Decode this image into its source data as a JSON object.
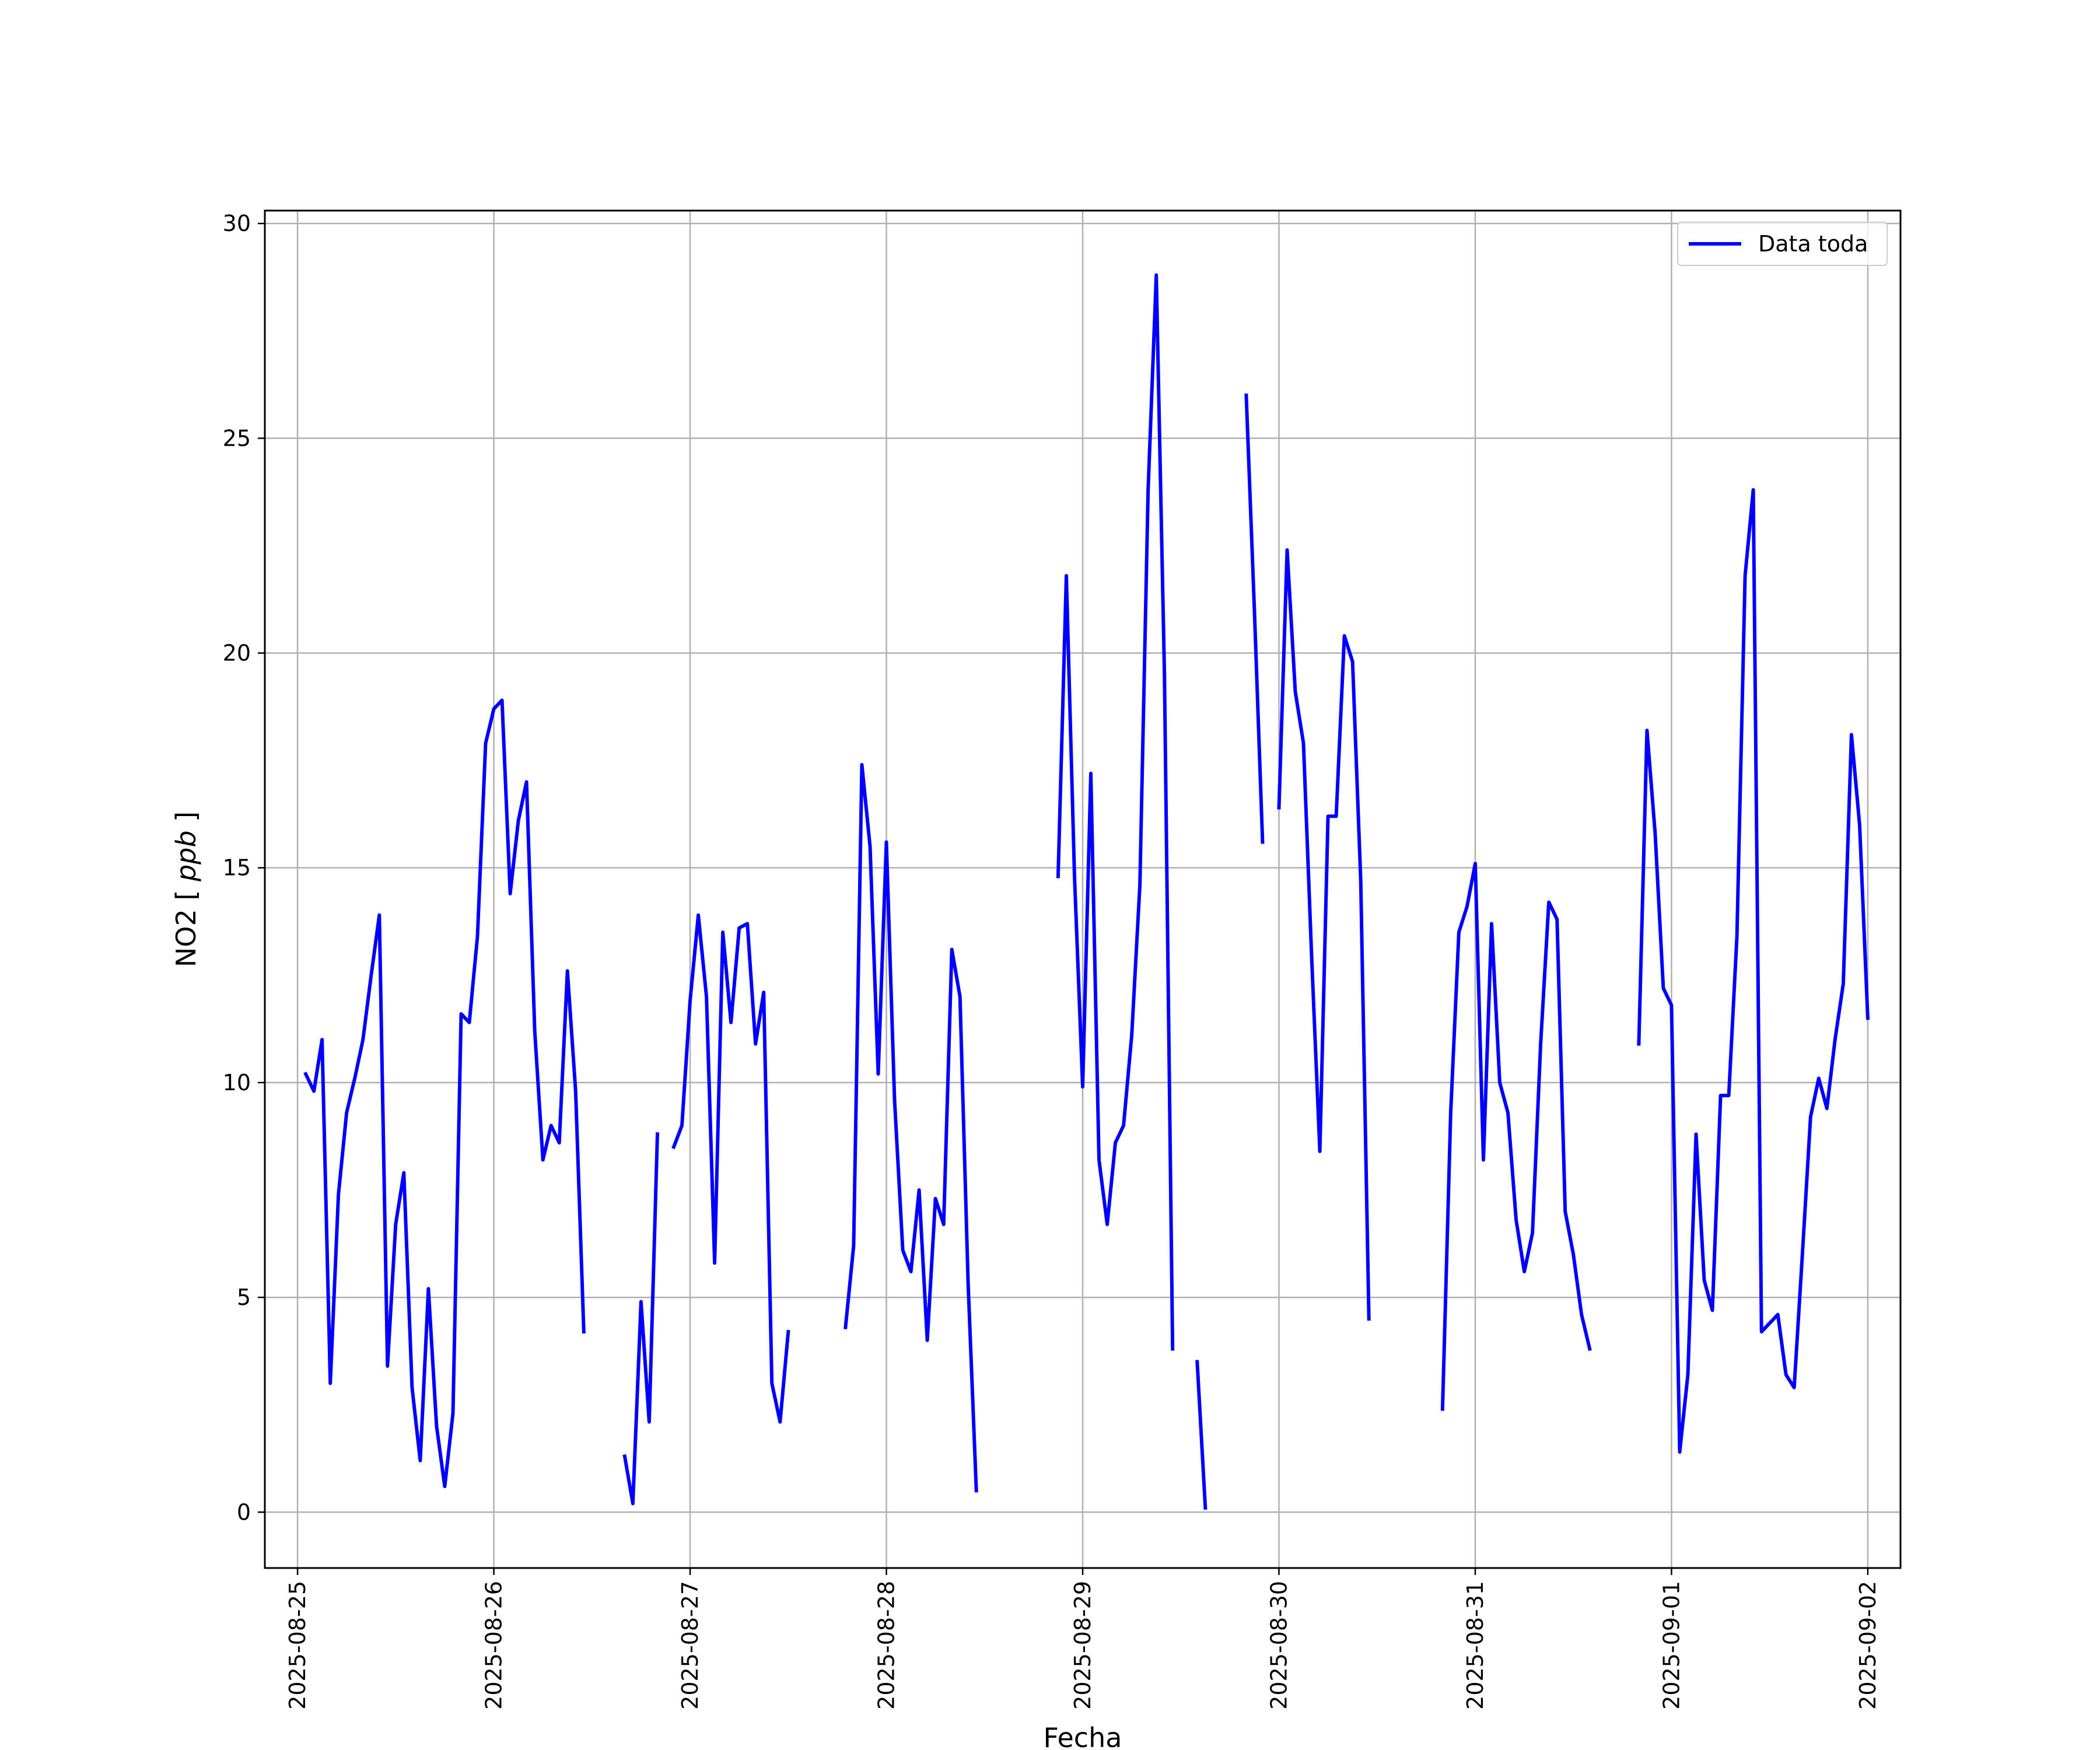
{
  "chart_data": {
    "type": "line",
    "xlabel": "Fecha",
    "ylabel_main": "NO2",
    "ylabel_unit": "ppb",
    "xlim": [
      "2025-08-24T20:00",
      "2025-09-02T04:00"
    ],
    "ylim": [
      -1.3,
      30.3
    ],
    "grid": true,
    "legend_position": "top-right",
    "line_color": "#0000ff",
    "x_ticks": [
      "2025-08-25",
      "2025-08-26",
      "2025-08-27",
      "2025-08-28",
      "2025-08-29",
      "2025-08-30",
      "2025-08-31",
      "2025-09-01",
      "2025-09-02"
    ],
    "y_ticks": [
      0,
      5,
      10,
      15,
      20,
      25,
      30
    ],
    "series": [
      {
        "name": "Data toda",
        "segments": [
          [
            [
              "2025-08-25T01:00",
              10.2
            ],
            [
              "2025-08-25T02:00",
              9.8
            ],
            [
              "2025-08-25T03:00",
              11.0
            ],
            [
              "2025-08-25T04:00",
              3.0
            ],
            [
              "2025-08-25T05:00",
              7.4
            ],
            [
              "2025-08-25T06:00",
              9.3
            ],
            [
              "2025-08-25T07:00",
              10.1
            ],
            [
              "2025-08-25T08:00",
              11.0
            ],
            [
              "2025-08-25T09:00",
              12.5
            ],
            [
              "2025-08-25T10:00",
              13.9
            ],
            [
              "2025-08-25T11:00",
              3.4
            ],
            [
              "2025-08-25T12:00",
              6.7
            ],
            [
              "2025-08-25T13:00",
              7.9
            ],
            [
              "2025-08-25T14:00",
              2.9
            ],
            [
              "2025-08-25T15:00",
              1.2
            ],
            [
              "2025-08-25T16:00",
              5.2
            ],
            [
              "2025-08-25T17:00",
              2.0
            ],
            [
              "2025-08-25T18:00",
              0.6
            ],
            [
              "2025-08-25T19:00",
              2.3
            ],
            [
              "2025-08-25T20:00",
              11.6
            ],
            [
              "2025-08-25T21:00",
              11.4
            ],
            [
              "2025-08-25T22:00",
              13.4
            ],
            [
              "2025-08-25T23:00",
              17.9
            ],
            [
              "2025-08-26T00:00",
              18.7
            ],
            [
              "2025-08-26T01:00",
              18.9
            ],
            [
              "2025-08-26T02:00",
              14.4
            ],
            [
              "2025-08-26T03:00",
              16.1
            ],
            [
              "2025-08-26T04:00",
              17.0
            ],
            [
              "2025-08-26T05:00",
              11.2
            ],
            [
              "2025-08-26T06:00",
              8.2
            ],
            [
              "2025-08-26T07:00",
              9.0
            ],
            [
              "2025-08-26T08:00",
              8.6
            ],
            [
              "2025-08-26T09:00",
              12.6
            ],
            [
              "2025-08-26T10:00",
              9.8
            ],
            [
              "2025-08-26T11:00",
              4.2
            ]
          ],
          [
            [
              "2025-08-26T16:00",
              1.3
            ],
            [
              "2025-08-26T17:00",
              0.2
            ],
            [
              "2025-08-26T18:00",
              4.9
            ],
            [
              "2025-08-26T19:00",
              2.1
            ],
            [
              "2025-08-26T20:00",
              8.8
            ]
          ],
          [
            [
              "2025-08-26T22:00",
              8.5
            ],
            [
              "2025-08-26T23:00",
              9.0
            ],
            [
              "2025-08-27T00:00",
              11.9
            ],
            [
              "2025-08-27T01:00",
              13.9
            ],
            [
              "2025-08-27T02:00",
              12.0
            ],
            [
              "2025-08-27T03:00",
              5.8
            ],
            [
              "2025-08-27T04:00",
              13.5
            ],
            [
              "2025-08-27T05:00",
              11.4
            ],
            [
              "2025-08-27T06:00",
              13.6
            ],
            [
              "2025-08-27T07:00",
              13.7
            ],
            [
              "2025-08-27T08:00",
              10.9
            ],
            [
              "2025-08-27T09:00",
              12.1
            ],
            [
              "2025-08-27T10:00",
              3.0
            ],
            [
              "2025-08-27T11:00",
              2.1
            ],
            [
              "2025-08-27T12:00",
              4.2
            ]
          ],
          [
            [
              "2025-08-27T19:00",
              4.3
            ],
            [
              "2025-08-27T20:00",
              6.2
            ],
            [
              "2025-08-27T21:00",
              17.4
            ],
            [
              "2025-08-27T22:00",
              15.5
            ],
            [
              "2025-08-27T23:00",
              10.2
            ],
            [
              "2025-08-28T00:00",
              15.6
            ],
            [
              "2025-08-28T01:00",
              9.6
            ],
            [
              "2025-08-28T02:00",
              6.1
            ],
            [
              "2025-08-28T03:00",
              5.6
            ],
            [
              "2025-08-28T04:00",
              7.5
            ],
            [
              "2025-08-28T05:00",
              4.0
            ],
            [
              "2025-08-28T06:00",
              7.3
            ],
            [
              "2025-08-28T07:00",
              6.7
            ],
            [
              "2025-08-28T08:00",
              13.1
            ],
            [
              "2025-08-28T09:00",
              12.0
            ],
            [
              "2025-08-28T10:00",
              5.3
            ],
            [
              "2025-08-28T11:00",
              0.5
            ]
          ],
          [
            [
              "2025-08-28T21:00",
              14.8
            ],
            [
              "2025-08-28T22:00",
              21.8
            ],
            [
              "2025-08-28T23:00",
              14.8
            ],
            [
              "2025-08-29T00:00",
              9.9
            ],
            [
              "2025-08-29T01:00",
              17.2
            ],
            [
              "2025-08-29T02:00",
              8.2
            ],
            [
              "2025-08-29T03:00",
              6.7
            ],
            [
              "2025-08-29T04:00",
              8.6
            ],
            [
              "2025-08-29T05:00",
              9.0
            ],
            [
              "2025-08-29T06:00",
              11.1
            ],
            [
              "2025-08-29T07:00",
              14.6
            ],
            [
              "2025-08-29T08:00",
              23.8
            ],
            [
              "2025-08-29T09:00",
              28.8
            ],
            [
              "2025-08-29T10:00",
              19.5
            ],
            [
              "2025-08-29T11:00",
              3.8
            ]
          ],
          [
            [
              "2025-08-29T14:00",
              3.5
            ],
            [
              "2025-08-29T15:00",
              0.1
            ]
          ],
          [
            [
              "2025-08-29T20:00",
              26.0
            ],
            [
              "2025-08-29T21:00",
              21.0
            ],
            [
              "2025-08-29T22:00",
              15.6
            ]
          ],
          [
            [
              "2025-08-30T00:00",
              16.4
            ],
            [
              "2025-08-30T01:00",
              22.4
            ],
            [
              "2025-08-30T02:00",
              19.1
            ],
            [
              "2025-08-30T03:00",
              17.9
            ],
            [
              "2025-08-30T04:00",
              12.9
            ],
            [
              "2025-08-30T05:00",
              8.4
            ],
            [
              "2025-08-30T06:00",
              16.2
            ],
            [
              "2025-08-30T07:00",
              16.2
            ],
            [
              "2025-08-30T08:00",
              20.4
            ],
            [
              "2025-08-30T09:00",
              19.8
            ],
            [
              "2025-08-30T10:00",
              14.7
            ],
            [
              "2025-08-30T11:00",
              4.5
            ]
          ],
          [
            [
              "2025-08-30T20:00",
              2.4
            ],
            [
              "2025-08-30T21:00",
              9.3
            ],
            [
              "2025-08-30T22:00",
              13.5
            ],
            [
              "2025-08-30T23:00",
              14.1
            ],
            [
              "2025-08-31T00:00",
              15.1
            ],
            [
              "2025-08-31T01:00",
              8.2
            ],
            [
              "2025-08-31T02:00",
              13.7
            ],
            [
              "2025-08-31T03:00",
              10.0
            ],
            [
              "2025-08-31T04:00",
              9.3
            ],
            [
              "2025-08-31T05:00",
              6.8
            ],
            [
              "2025-08-31T06:00",
              5.6
            ],
            [
              "2025-08-31T07:00",
              6.5
            ],
            [
              "2025-08-31T08:00",
              10.9
            ],
            [
              "2025-08-31T09:00",
              14.2
            ],
            [
              "2025-08-31T10:00",
              13.8
            ],
            [
              "2025-08-31T11:00",
              7.0
            ],
            [
              "2025-08-31T12:00",
              6.0
            ],
            [
              "2025-08-31T13:00",
              4.6
            ],
            [
              "2025-08-31T14:00",
              3.8
            ]
          ],
          [
            [
              "2025-08-31T20:00",
              10.9
            ],
            [
              "2025-08-31T21:00",
              18.2
            ],
            [
              "2025-08-31T22:00",
              15.8
            ],
            [
              "2025-08-31T23:00",
              12.2
            ],
            [
              "2025-09-01T00:00",
              11.8
            ],
            [
              "2025-09-01T01:00",
              1.4
            ],
            [
              "2025-09-01T02:00",
              3.2
            ],
            [
              "2025-09-01T03:00",
              8.8
            ],
            [
              "2025-09-01T04:00",
              5.4
            ],
            [
              "2025-09-01T05:00",
              4.7
            ],
            [
              "2025-09-01T06:00",
              9.7
            ],
            [
              "2025-09-01T07:00",
              9.7
            ],
            [
              "2025-09-01T08:00",
              13.4
            ],
            [
              "2025-09-01T09:00",
              21.8
            ],
            [
              "2025-09-01T10:00",
              23.8
            ],
            [
              "2025-09-01T11:00",
              4.2
            ],
            [
              "2025-09-01T12:00",
              4.4
            ],
            [
              "2025-09-01T13:00",
              4.6
            ],
            [
              "2025-09-01T14:00",
              3.2
            ],
            [
              "2025-09-01T15:00",
              2.9
            ],
            [
              "2025-09-01T16:00",
              6.0
            ],
            [
              "2025-09-01T17:00",
              9.2
            ],
            [
              "2025-09-01T18:00",
              10.1
            ],
            [
              "2025-09-01T19:00",
              9.4
            ],
            [
              "2025-09-01T20:00",
              11.0
            ],
            [
              "2025-09-01T21:00",
              12.3
            ],
            [
              "2025-09-01T22:00",
              18.1
            ],
            [
              "2025-09-01T23:00",
              16.0
            ],
            [
              "2025-09-02T00:00",
              11.5
            ]
          ]
        ]
      }
    ]
  }
}
